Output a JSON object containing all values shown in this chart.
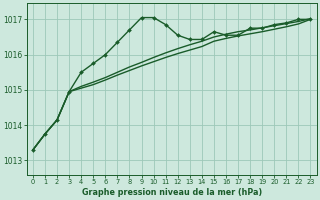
{
  "title": "Graphe pression niveau de la mer (hPa)",
  "background_color": "#cde8dd",
  "grid_color": "#9dc8b8",
  "line_color": "#1a5c2a",
  "x_ticks": [
    0,
    1,
    2,
    3,
    4,
    5,
    6,
    7,
    8,
    9,
    10,
    11,
    12,
    13,
    14,
    15,
    16,
    17,
    18,
    19,
    20,
    21,
    22,
    23
  ],
  "y_ticks": [
    1013,
    1014,
    1015,
    1016,
    1017
  ],
  "ylim": [
    1012.6,
    1017.45
  ],
  "xlim": [
    -0.5,
    23.5
  ],
  "series": [
    {
      "y": [
        1013.3,
        1013.75,
        1014.15,
        1014.95,
        1015.5,
        1015.75,
        1016.0,
        1016.35,
        1016.7,
        1017.05,
        1017.05,
        1016.85,
        1016.55,
        1016.43,
        1016.43,
        1016.65,
        1016.55,
        1016.55,
        1016.75,
        1016.75,
        1016.85,
        1016.9,
        1017.0,
        1017.0
      ],
      "marker": true,
      "linewidth": 1.0
    },
    {
      "y": [
        1013.3,
        1013.75,
        1014.15,
        1014.95,
        1015.1,
        1015.22,
        1015.35,
        1015.5,
        1015.65,
        1015.78,
        1015.92,
        1016.05,
        1016.17,
        1016.28,
        1016.38,
        1016.5,
        1016.58,
        1016.65,
        1016.7,
        1016.76,
        1016.82,
        1016.88,
        1016.94,
        1017.02
      ],
      "marker": false,
      "linewidth": 1.0
    },
    {
      "y": [
        1013.3,
        1013.75,
        1014.15,
        1014.95,
        1015.05,
        1015.15,
        1015.28,
        1015.42,
        1015.55,
        1015.68,
        1015.8,
        1015.92,
        1016.03,
        1016.13,
        1016.23,
        1016.38,
        1016.46,
        1016.53,
        1016.59,
        1016.65,
        1016.72,
        1016.79,
        1016.87,
        1017.0
      ],
      "marker": false,
      "linewidth": 1.0
    }
  ]
}
